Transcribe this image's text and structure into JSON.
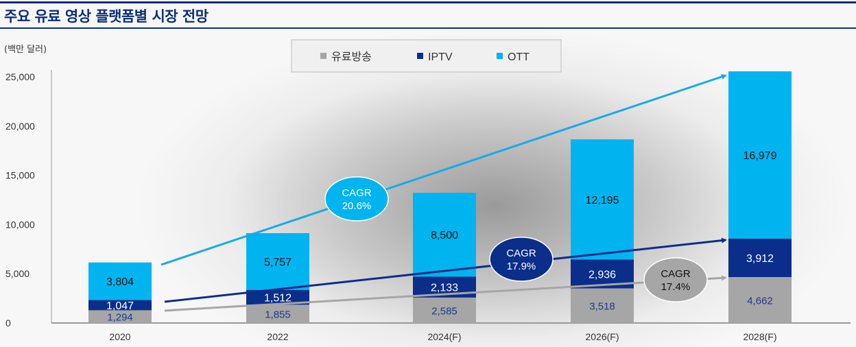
{
  "title": "주요 유료 영상 플랫폼별 시장 전망",
  "chart_data": {
    "type": "bar",
    "stacked": true,
    "title": "주요 유료 영상 플랫폼별 시장 전망",
    "ylabel": "(백만 달러)",
    "ylim": [
      0,
      25000
    ],
    "yticks": [
      "0",
      "5,000",
      "10,000",
      "15,000",
      "20,000",
      "25,000"
    ],
    "categories": [
      "2020",
      "2022",
      "2024(F)",
      "2026(F)",
      "2028(F)"
    ],
    "legend_position": "top-center",
    "series": [
      {
        "name": "유료방송",
        "color": "#a6a6a6",
        "values": [
          1294,
          1855,
          2585,
          3518,
          4662
        ],
        "labels": [
          "1,294",
          "1,855",
          "2,585",
          "3,518",
          "4,662"
        ]
      },
      {
        "name": "IPTV",
        "color": "#0a2e8a",
        "values": [
          1047,
          1512,
          2133,
          2936,
          3912
        ],
        "labels": [
          "1,047",
          "1,512",
          "2,133",
          "2,936",
          "3,912"
        ]
      },
      {
        "name": "OTT",
        "color": "#00b4f0",
        "values": [
          3804,
          5757,
          8500,
          12195,
          16979
        ],
        "labels": [
          "3,804",
          "5,757",
          "8,500",
          "12,195",
          "16,979"
        ]
      }
    ],
    "annotations": [
      {
        "series": "OTT",
        "line1": "CAGR",
        "line2": "20.6%",
        "color": "#00b4f0"
      },
      {
        "series": "IPTV",
        "line1": "CAGR",
        "line2": "17.9%",
        "color": "#0a2e8a"
      },
      {
        "series": "유료방송",
        "line1": "CAGR",
        "line2": "17.4%",
        "color": "#a6a6a6"
      }
    ]
  }
}
